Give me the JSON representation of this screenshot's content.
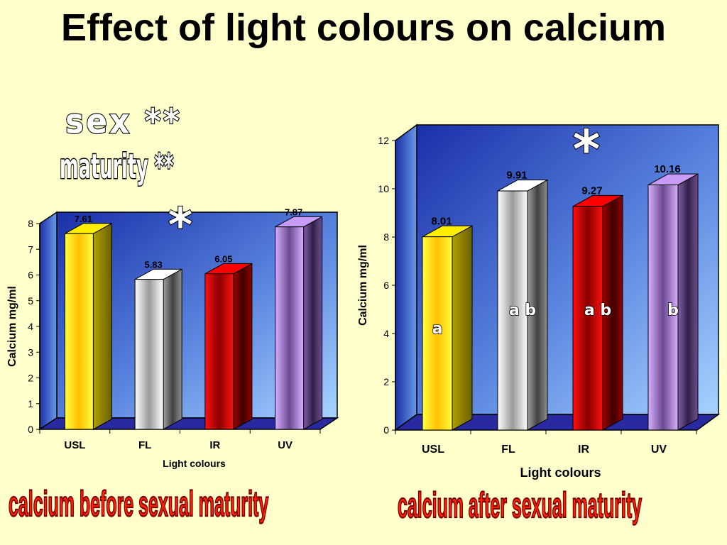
{
  "slide": {
    "title": "Effect of light colours on calcium",
    "sex_label": "sex **",
    "maturity_label": "maturity **",
    "caption_before": "calcium before sexual maturity",
    "caption_after": "calcium after sexual maturity"
  },
  "chart_data": [
    {
      "type": "bar",
      "categories": [
        "USL",
        "FL",
        "IR",
        "UV"
      ],
      "values": [
        7.61,
        5.83,
        6.05,
        7.87
      ],
      "value_labels": [
        "7.61",
        "5.83",
        "6.05",
        "7.87"
      ],
      "xlabel": "Light colours",
      "ylabel": "Calcium  mg/ml",
      "ylim": [
        0,
        8
      ],
      "yticks": [
        "0",
        "1",
        "2",
        "3",
        "4",
        "5",
        "6",
        "7",
        "8"
      ],
      "significance": "*",
      "bar_colors": [
        "#ffee00",
        "#ffffff",
        "#ff0000",
        "#c89cf6"
      ]
    },
    {
      "type": "bar",
      "categories": [
        "USL",
        "FL",
        "IR",
        "UV"
      ],
      "values": [
        8.01,
        9.91,
        9.27,
        10.16
      ],
      "value_labels": [
        "8.01",
        "9.91",
        "9.27",
        "10.16"
      ],
      "xlabel": "Light colours",
      "ylabel": "Calcium mg/ml",
      "ylim": [
        0,
        12
      ],
      "yticks": [
        "0",
        "2",
        "4",
        "6",
        "8",
        "10",
        "12"
      ],
      "significance": "*",
      "group_letters": [
        "a",
        "a b",
        "a b",
        "b"
      ],
      "bar_colors": [
        "#ffee00",
        "#ffffff",
        "#ff0000",
        "#c89cf6"
      ]
    }
  ]
}
